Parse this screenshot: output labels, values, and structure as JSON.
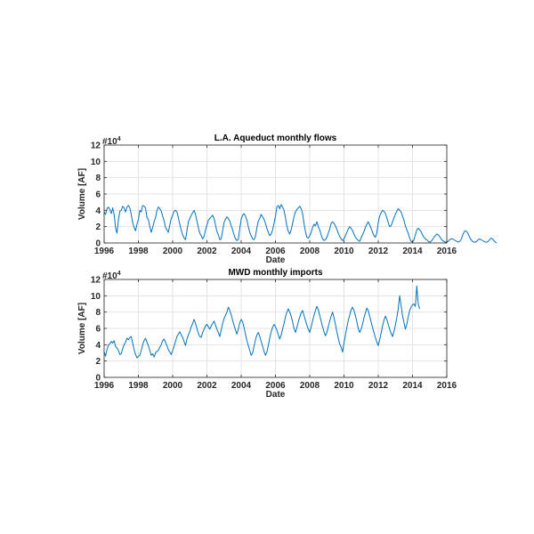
{
  "chart_data": [
    {
      "type": "line",
      "title": "L.A. Aqueduct monthly flows",
      "xlabel": "Date",
      "ylabel": "Volume [AF]",
      "y_multiplier": "#10",
      "y_multiplier_exponent": "4",
      "xlim": [
        1996,
        2016
      ],
      "ylim": [
        0,
        12
      ],
      "x_ticks": [
        "1996",
        "1998",
        "2000",
        "2002",
        "2004",
        "2006",
        "2008",
        "2010",
        "2012",
        "2014",
        "2016"
      ],
      "y_ticks": [
        "0",
        "2",
        "4",
        "6",
        "8",
        "10",
        "12"
      ],
      "grid": true,
      "color": "#0072bd",
      "x_start_year": 1996,
      "step_months": 1,
      "values": [
        3.8,
        3.5,
        4.2,
        4.4,
        4.1,
        3.6,
        4.3,
        3.5,
        1.9,
        1.2,
        2.8,
        3.9,
        4.0,
        4.5,
        4.3,
        3.8,
        4.4,
        4.6,
        4.3,
        3.5,
        2.5,
        1.9,
        1.5,
        2.3,
        2.9,
        4.0,
        3.8,
        4.6,
        4.5,
        4.3,
        3.1,
        2.9,
        2.0,
        1.3,
        1.9,
        2.6,
        3.1,
        4.0,
        4.4,
        4.2,
        3.9,
        3.3,
        2.7,
        1.9,
        1.6,
        1.3,
        2.2,
        3.0,
        3.4,
        3.9,
        4.0,
        3.8,
        3.1,
        2.3,
        1.6,
        1.0,
        0.6,
        0.4,
        1.5,
        2.6,
        3.0,
        3.4,
        3.7,
        4.0,
        3.5,
        2.7,
        1.9,
        1.2,
        0.9,
        0.5,
        0.8,
        1.6,
        2.2,
        2.8,
        3.0,
        3.2,
        3.4,
        3.0,
        2.2,
        1.4,
        1.0,
        0.4,
        0.5,
        1.5,
        2.5,
        2.9,
        3.2,
        3.0,
        2.7,
        2.1,
        1.6,
        1.0,
        0.5,
        0.3,
        0.4,
        1.8,
        2.9,
        3.4,
        3.6,
        3.3,
        2.8,
        2.0,
        1.3,
        0.9,
        0.5,
        0.4,
        0.8,
        1.9,
        2.7,
        3.0,
        3.5,
        3.2,
        2.9,
        2.4,
        1.8,
        1.3,
        0.9,
        1.1,
        1.6,
        2.4,
        3.3,
        4.4,
        4.6,
        4.2,
        4.7,
        4.4,
        4.0,
        3.1,
        2.1,
        1.4,
        1.1,
        1.6,
        2.4,
        3.2,
        3.8,
        4.1,
        4.3,
        4.5,
        4.2,
        3.6,
        2.4,
        1.4,
        0.7,
        0.6,
        0.9,
        1.3,
        1.9,
        2.3,
        2.1,
        2.6,
        2.0,
        1.6,
        1.0,
        0.5,
        0.3,
        0.4,
        0.7,
        1.2,
        1.7,
        2.4,
        2.6,
        2.4,
        2.1,
        1.7,
        1.2,
        0.8,
        0.5,
        0.3,
        0.5,
        0.9,
        1.3,
        1.7,
        2.0,
        1.8,
        1.5,
        1.1,
        0.7,
        0.5,
        0.3,
        0.2,
        0.6,
        1.0,
        1.4,
        1.9,
        2.3,
        2.6,
        2.2,
        1.8,
        1.3,
        0.9,
        0.7,
        1.2,
        2.5,
        3.3,
        3.7,
        4.0,
        3.9,
        3.6,
        3.1,
        2.5,
        2.0,
        2.1,
        2.6,
        3.1,
        3.5,
        3.9,
        4.2,
        4.0,
        3.8,
        3.3,
        2.8,
        2.1,
        1.6,
        1.2,
        0.6,
        0.2,
        0.1,
        0.4,
        1.0,
        1.6,
        1.8,
        1.6,
        1.4,
        1.0,
        0.7,
        0.5,
        0.4,
        0.2,
        0.1,
        0.2,
        0.4,
        0.7,
        0.9,
        1.1,
        1.0,
        0.8,
        0.5,
        0.3,
        0.2,
        0.1,
        0.1,
        0.2,
        0.4,
        0.5,
        0.5,
        0.4,
        0.3,
        0.2,
        0.1,
        0.2,
        0.4,
        0.9,
        1.3,
        1.5,
        1.4,
        1.1,
        0.7,
        0.4,
        0.2,
        0.1,
        0.1,
        0.2,
        0.4,
        0.5,
        0.4,
        0.3,
        0.2,
        0.1,
        0.1,
        0.2,
        0.4,
        0.6,
        0.5,
        0.3,
        0.1,
        0.0
      ]
    },
    {
      "type": "line",
      "title": "MWD monthly imports",
      "xlabel": "Date",
      "ylabel": "Volume [AF]",
      "y_multiplier": "#10",
      "y_multiplier_exponent": "4",
      "xlim": [
        1996,
        2016
      ],
      "ylim": [
        0,
        12
      ],
      "x_ticks": [
        "1996",
        "1998",
        "2000",
        "2002",
        "2004",
        "2006",
        "2008",
        "2010",
        "2012",
        "2014",
        "2016"
      ],
      "y_ticks": [
        "0",
        "2",
        "4",
        "6",
        "8",
        "10",
        "12"
      ],
      "grid": true,
      "color": "#0072bd",
      "x_start_year": 1996,
      "step_months": 1,
      "values": [
        3.1,
        2.6,
        3.4,
        4.0,
        4.1,
        4.4,
        4.2,
        4.5,
        3.8,
        3.6,
        3.3,
        2.8,
        2.9,
        3.5,
        4.0,
        4.3,
        4.8,
        4.6,
        4.9,
        5.0,
        4.2,
        3.4,
        2.8,
        2.4,
        2.6,
        2.7,
        3.3,
        4.0,
        4.5,
        4.8,
        4.3,
        3.9,
        3.3,
        2.7,
        2.9,
        2.5,
        3.0,
        3.2,
        3.3,
        3.7,
        4.0,
        4.5,
        4.7,
        4.3,
        3.9,
        3.4,
        3.1,
        2.8,
        3.3,
        3.8,
        4.4,
        5.0,
        5.3,
        5.6,
        5.2,
        4.9,
        4.4,
        3.9,
        4.7,
        5.2,
        5.6,
        6.2,
        6.6,
        7.1,
        6.6,
        6.0,
        5.4,
        5.0,
        4.9,
        5.5,
        5.9,
        6.3,
        6.5,
        6.2,
        5.9,
        6.3,
        6.6,
        6.9,
        6.4,
        5.9,
        5.5,
        5.0,
        5.8,
        6.6,
        7.2,
        7.6,
        8.0,
        8.6,
        8.2,
        7.7,
        7.0,
        6.4,
        5.8,
        5.3,
        5.9,
        6.7,
        7.1,
        6.8,
        6.1,
        5.3,
        4.5,
        3.9,
        3.3,
        2.7,
        3.0,
        3.8,
        4.6,
        5.2,
        5.5,
        5.0,
        4.4,
        3.8,
        3.2,
        2.7,
        3.1,
        3.9,
        4.8,
        5.6,
        6.1,
        6.5,
        6.2,
        5.8,
        5.2,
        4.7,
        5.2,
        5.9,
        6.6,
        7.4,
        8.0,
        8.4,
        8.0,
        7.5,
        6.8,
        6.0,
        5.5,
        6.1,
        6.8,
        7.4,
        7.9,
        8.2,
        7.6,
        7.0,
        6.4,
        5.9,
        5.5,
        6.2,
        6.9,
        7.6,
        8.2,
        8.7,
        8.3,
        7.6,
        6.9,
        6.2,
        5.6,
        5.1,
        5.5,
        6.2,
        6.9,
        7.5,
        8.0,
        7.3,
        6.5,
        5.6,
        4.8,
        4.1,
        3.7,
        3.1,
        4.2,
        5.2,
        6.1,
        7.0,
        7.6,
        8.3,
        8.6,
        8.2,
        7.6,
        6.8,
        6.0,
        5.5,
        5.9,
        6.5,
        7.3,
        7.9,
        8.5,
        8.2,
        7.5,
        6.8,
        6.1,
        5.5,
        4.9,
        4.3,
        3.9,
        4.6,
        5.4,
        6.3,
        7.0,
        7.5,
        7.1,
        6.5,
        5.9,
        5.4,
        5.0,
        5.6,
        6.4,
        7.3,
        8.4,
        10.0,
        8.8,
        7.6,
        6.7,
        5.9,
        6.5,
        7.4,
        8.2,
        8.6,
        8.9,
        9.0,
        8.7,
        11.2,
        9.0,
        8.4
      ]
    }
  ]
}
